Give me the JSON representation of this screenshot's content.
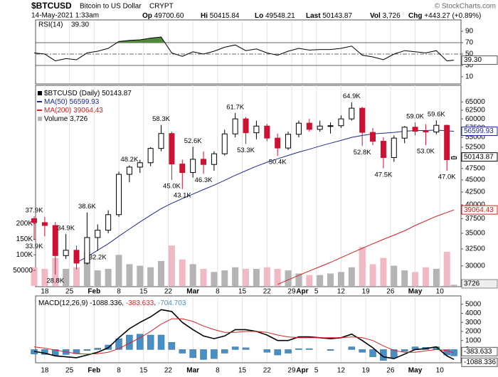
{
  "header": {
    "symbol": "$BTCUSD",
    "name": "Bitcoin to US Dollar",
    "exchange": "CRYPT",
    "date": "14-May-2021 1:33am",
    "stats": [
      {
        "label": "Op",
        "value": "49700.60"
      },
      {
        "label": "Hi",
        "value": "50415.84"
      },
      {
        "label": "Lo",
        "value": "49548.21"
      },
      {
        "label": "Last",
        "value": "50143.87"
      },
      {
        "label": "Vol",
        "value": "3,726"
      },
      {
        "label": "Chg",
        "value": "+443.27 (+0.89%)"
      }
    ],
    "credit": "© StockCharts.com"
  },
  "chart_data": [
    {
      "type": "line",
      "title": "RSI(14)",
      "last_label": "39.30",
      "color": "#000000",
      "fill_color": "#4f8a3c",
      "x": [
        15,
        18,
        21,
        24,
        27,
        30,
        33,
        36,
        39,
        42,
        45,
        48,
        51,
        54,
        57,
        60,
        63,
        66,
        69,
        72,
        75,
        78,
        81,
        84,
        87,
        90,
        93,
        96,
        99,
        102,
        105,
        108,
        111,
        114,
        117,
        120,
        123,
        126,
        129,
        132,
        134
      ],
      "values": [
        52,
        50,
        38,
        42,
        40,
        52,
        55,
        60,
        72,
        74,
        75,
        78,
        80,
        52,
        46,
        54,
        50,
        55,
        62,
        66,
        56,
        59,
        52,
        48,
        55,
        60,
        57,
        58,
        58,
        60,
        64,
        48,
        45,
        40,
        50,
        56,
        54,
        52,
        56,
        38,
        39.3
      ],
      "xlim": [
        15.4,
        136
      ],
      "ylim": [
        0,
        105
      ],
      "yticks": [
        90,
        70,
        50,
        30,
        10
      ],
      "levels": [
        {
          "value": 70
        },
        {
          "value": 50,
          "dash": true
        },
        {
          "value": 30
        }
      ]
    },
    {
      "type": "candlestick",
      "name": "$BTCUSD (Daily)",
      "up_color": "#000000",
      "down_color": "#cc1133",
      "log": true,
      "x": [
        15,
        18,
        21,
        24,
        27,
        30,
        33,
        36,
        39,
        42,
        45,
        48,
        51,
        54,
        57,
        60,
        63,
        66,
        69,
        72,
        75,
        78,
        81,
        84,
        87,
        90,
        93,
        96,
        99,
        102,
        105,
        108,
        111,
        114,
        117,
        120,
        123,
        126,
        129,
        132,
        134
      ],
      "open": [
        37500,
        36800,
        36300,
        31500,
        32300,
        30400,
        34300,
        35500,
        38200,
        46200,
        47800,
        48800,
        52200,
        56000,
        48500,
        46600,
        49600,
        48400,
        50900,
        55900,
        60000,
        56200,
        58000,
        54800,
        52300,
        55800,
        58800,
        57100,
        58000,
        58100,
        60000,
        63100,
        56300,
        54000,
        50000,
        54800,
        57700,
        56600,
        56400,
        58200,
        49700.6
      ],
      "high": [
        37900,
        37800,
        36900,
        34900,
        33000,
        38600,
        36500,
        39000,
        46800,
        48200,
        49500,
        52500,
        58300,
        56500,
        49500,
        52600,
        51500,
        51500,
        57000,
        61700,
        60500,
        59500,
        58600,
        56000,
        56500,
        59500,
        60000,
        59500,
        59000,
        61000,
        64900,
        63500,
        57500,
        55000,
        55500,
        58000,
        59000,
        58500,
        59600,
        58400,
        50415.84
      ],
      "low": [
        33900,
        34500,
        28800,
        31000,
        29500,
        30200,
        32200,
        35000,
        37800,
        44500,
        46500,
        48000,
        51500,
        45000,
        43100,
        45500,
        46300,
        47000,
        50500,
        55000,
        53300,
        54500,
        54000,
        50400,
        51800,
        55000,
        56500,
        56500,
        56000,
        57500,
        59500,
        52800,
        53000,
        47500,
        49000,
        53500,
        55500,
        53000,
        55800,
        47000,
        49548.21
      ],
      "close": [
        36800,
        36300,
        31500,
        32300,
        30400,
        34300,
        35500,
        38200,
        46200,
        47800,
        48800,
        52200,
        56000,
        48500,
        46600,
        49600,
        48400,
        50900,
        55900,
        60000,
        56200,
        58000,
        54800,
        52300,
        55800,
        58800,
        57100,
        58000,
        58100,
        60000,
        63100,
        56300,
        54000,
        50000,
        54800,
        57700,
        56600,
        56400,
        58200,
        49500,
        50143.87
      ],
      "high_labels": [
        "37.9K",
        null,
        null,
        "34.9K",
        null,
        "38.6K",
        null,
        null,
        null,
        "48.2K",
        null,
        null,
        "58.3K",
        null,
        null,
        "52.6K",
        null,
        null,
        null,
        "61.7K",
        null,
        null,
        null,
        null,
        null,
        null,
        null,
        null,
        null,
        null,
        "64.9K",
        null,
        null,
        null,
        null,
        null,
        "59.0K",
        null,
        "59.6K",
        null,
        null
      ],
      "low_labels": [
        "33.9K",
        null,
        "28.8K",
        null,
        null,
        null,
        "32.2K",
        null,
        null,
        null,
        null,
        null,
        null,
        "45.0K",
        "43.1K",
        null,
        "46.3K",
        null,
        null,
        null,
        "53.3K",
        null,
        null,
        "50.4K",
        null,
        null,
        null,
        null,
        null,
        null,
        null,
        "52.8K",
        null,
        "47.5K",
        null,
        null,
        null,
        "53.0K",
        null,
        "47.0K",
        null
      ],
      "series": [
        {
          "name": "MA(50)",
          "color": "#1f2a8f",
          "values": [
            null,
            null,
            null,
            null,
            30500,
            31300,
            32300,
            33300,
            34500,
            35700,
            36900,
            38100,
            39300,
            40300,
            41200,
            42100,
            43000,
            43900,
            44900,
            46000,
            47000,
            48000,
            48900,
            49700,
            50500,
            51300,
            52000,
            52800,
            53500,
            54200,
            55000,
            55500,
            55900,
            56100,
            56300,
            56600,
            56800,
            56800,
            56900,
            56700,
            56599.93
          ]
        },
        {
          "name": "MA(200)",
          "color": "#cc2222",
          "values": [
            null,
            null,
            null,
            null,
            null,
            null,
            null,
            null,
            null,
            null,
            null,
            null,
            null,
            null,
            null,
            null,
            null,
            null,
            null,
            null,
            null,
            null,
            null,
            27500,
            28100,
            28700,
            29300,
            29900,
            30500,
            31200,
            31900,
            32600,
            33300,
            34000,
            34700,
            35400,
            36300,
            37100,
            37900,
            38600,
            39064.43
          ]
        }
      ],
      "volume": {
        "name": "Volume",
        "value_label": "3,726",
        "up_color": "#b4b4b4",
        "down_color": "#f1b9c3",
        "values": [
          60000,
          55000,
          90000,
          55000,
          60000,
          110000,
          50000,
          55000,
          100000,
          70000,
          65000,
          60000,
          80000,
          130000,
          85000,
          70000,
          55000,
          45000,
          50000,
          60000,
          55000,
          55000,
          60000,
          55000,
          50000,
          40000,
          35000,
          35000,
          40000,
          45000,
          60000,
          125000,
          70000,
          90000,
          65000,
          50000,
          45000,
          60000,
          55000,
          110000,
          3726
        ],
        "ylim": [
          0,
          640000
        ],
        "yticks": [
          {
            "value": 200000,
            "label": "200K"
          },
          {
            "value": 150000,
            "label": "150K"
          },
          {
            "value": 100000,
            "label": "100K"
          },
          50000
        ]
      },
      "xlim": [
        15.4,
        136
      ],
      "ylim": [
        27300,
        69800
      ],
      "yticks": [
        65000,
        62500,
        60000,
        57500,
        55000,
        52500,
        50000,
        47500,
        45000,
        42500,
        40000,
        37500,
        35000,
        32500,
        30000
      ],
      "xticks": [
        18,
        25,
        {
          "value": 32,
          "label": "Feb"
        },
        {
          "value": 39,
          "label": "8"
        },
        {
          "value": 46,
          "label": "15"
        },
        {
          "value": 53,
          "label": "22"
        },
        {
          "value": 60,
          "label": "Mar"
        },
        {
          "value": 67,
          "label": "8"
        },
        {
          "value": 74,
          "label": "15"
        },
        {
          "value": 81,
          "label": "22"
        },
        {
          "value": 88,
          "label": "29"
        },
        {
          "value": 91,
          "label": "Apr"
        },
        {
          "value": 95,
          "label": "5"
        },
        {
          "value": 102,
          "label": "12"
        },
        {
          "value": 109,
          "label": "19"
        },
        {
          "value": 116,
          "label": "26"
        },
        {
          "value": 123,
          "label": "May"
        },
        {
          "value": 130,
          "label": "10"
        }
      ]
    },
    {
      "type": "macd",
      "title": "MACD(12,26,9)",
      "x": [
        15,
        18,
        21,
        24,
        27,
        30,
        33,
        36,
        39,
        42,
        45,
        48,
        51,
        54,
        57,
        60,
        63,
        66,
        69,
        72,
        75,
        78,
        81,
        84,
        87,
        90,
        93,
        96,
        99,
        102,
        105,
        108,
        111,
        114,
        117,
        120,
        123,
        126,
        129,
        132,
        134
      ],
      "series": [
        {
          "color": "#000000",
          "values": [
            -200,
            -400,
            -700,
            -800,
            -900,
            -600,
            -300,
            200,
            1300,
            2300,
            3000,
            3600,
            4400,
            4200,
            3000,
            2200,
            1500,
            1200,
            1500,
            2200,
            2200,
            2000,
            1600,
            1000,
            1000,
            1400,
            1400,
            1300,
            1200,
            1300,
            1700,
            1000,
            200,
            -800,
            -1000,
            -500,
            0,
            100,
            300,
            -700,
            -1088.336
          ]
        },
        {
          "color": "#dd2222",
          "values": [
            300,
            150,
            -50,
            -250,
            -450,
            -500,
            -450,
            -300,
            100,
            700,
            1300,
            2000,
            2800,
            3400,
            3400,
            3100,
            2600,
            2200,
            1900,
            1900,
            2000,
            2000,
            1900,
            1600,
            1400,
            1300,
            1300,
            1300,
            1300,
            1300,
            1400,
            1300,
            1000,
            400,
            -100,
            -300,
            -300,
            -150,
            0,
            -100,
            -383.633
          ]
        }
      ],
      "histogram": {
        "color": "#4a8fc4",
        "values": [
          -500,
          -550,
          -650,
          -550,
          -450,
          -100,
          150,
          500,
          1200,
          1600,
          1700,
          1600,
          1600,
          800,
          -400,
          -900,
          -1100,
          -1000,
          -400,
          300,
          200,
          0,
          -300,
          -600,
          -400,
          100,
          100,
          0,
          -100,
          0,
          300,
          -300,
          -800,
          -1200,
          -900,
          -200,
          300,
          250,
          300,
          -600,
          -704.703
        ]
      },
      "xlim": [
        15.4,
        136
      ],
      "ylim": [
        -1300,
        5600
      ],
      "yticks": [
        5000,
        4000,
        3000,
        2000,
        1000,
        0
      ],
      "xticks": [
        18,
        25,
        {
          "value": 32,
          "label": "Feb"
        },
        {
          "value": 39,
          "label": "8"
        },
        {
          "value": 46,
          "label": "15"
        },
        {
          "value": 53,
          "label": "22"
        },
        {
          "value": 60,
          "label": "Mar"
        },
        {
          "value": 67,
          "label": "8"
        },
        {
          "value": 74,
          "label": "15"
        },
        {
          "value": 81,
          "label": "22"
        },
        {
          "value": 88,
          "label": "29"
        },
        {
          "value": 91,
          "label": "Apr"
        },
        {
          "value": 95,
          "label": "5"
        },
        {
          "value": 102,
          "label": "12"
        },
        {
          "value": 109,
          "label": "19"
        },
        {
          "value": 116,
          "label": "26"
        },
        {
          "value": 123,
          "label": "May"
        },
        {
          "value": 130,
          "label": "10"
        }
      ]
    }
  ]
}
